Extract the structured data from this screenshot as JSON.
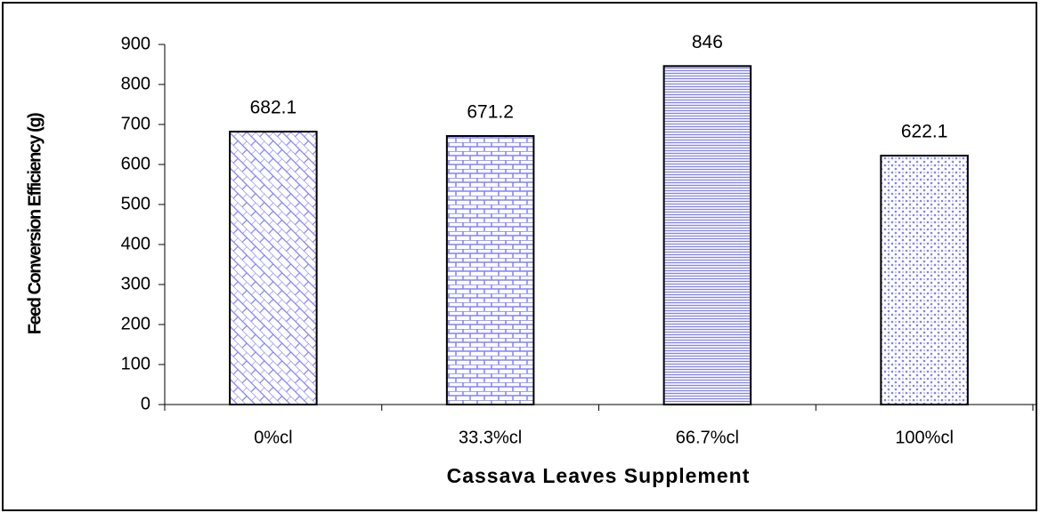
{
  "chart_data": {
    "type": "bar",
    "categories": [
      "0%cl",
      "33.3%cl",
      "66.7%cl",
      "100%cl"
    ],
    "values": [
      682.1,
      671.2,
      846,
      622.1
    ],
    "color": "#8080ff",
    "xlabel": "Cassava Leaves Supplement",
    "ylabel": "Feed Conversion Efficiency (g)",
    "ylim": [
      0,
      900
    ],
    "yticks": [
      0,
      100,
      200,
      300,
      400,
      500,
      600,
      700,
      800,
      900
    ],
    "grid": false,
    "show_value_labels": true
  }
}
